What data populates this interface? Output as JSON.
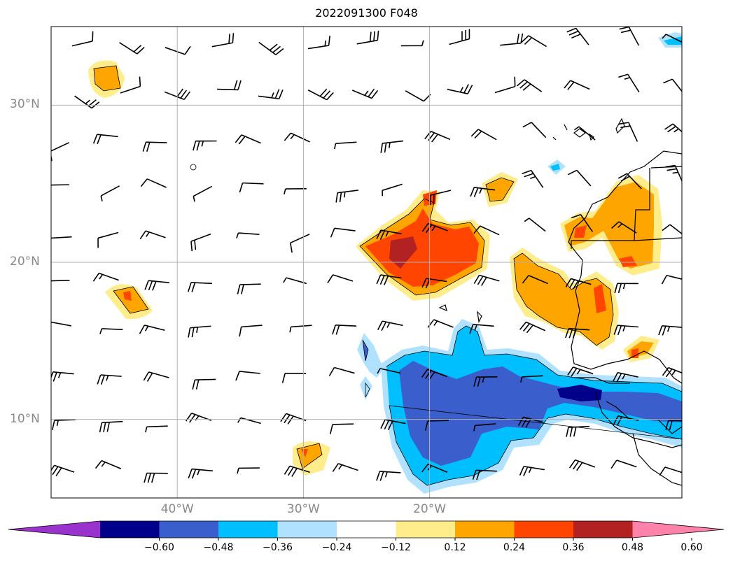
{
  "title": "2022091300 F048",
  "map": {
    "projection": "PlateCarree",
    "lon_range": [
      -50,
      0
    ],
    "lat_range": [
      5,
      35
    ],
    "lat_labels": [
      {
        "lat": 30,
        "text": "30°N"
      },
      {
        "lat": 20,
        "text": "20°N"
      },
      {
        "lat": 10,
        "text": "10°N"
      }
    ],
    "lon_labels": [
      {
        "lon": -40,
        "text": "40°W"
      },
      {
        "lon": -30,
        "text": "30°W"
      },
      {
        "lon": -20,
        "text": "20°W"
      }
    ],
    "gridlines": true
  },
  "colorbar": {
    "ticks": [
      "−0.60",
      "−0.48",
      "−0.36",
      "−0.24",
      "−0.12",
      "0.12",
      "0.24",
      "0.36",
      "0.48",
      "0.60"
    ],
    "colors": [
      "#9a32cd",
      "#00008b",
      "#3a5fcd",
      "#00bfff",
      "#b0e2ff",
      "#ffffff",
      "#ffec8b",
      "#ffa500",
      "#ff4500",
      "#b22222",
      "#ff82ab"
    ],
    "extend": "both"
  }
}
